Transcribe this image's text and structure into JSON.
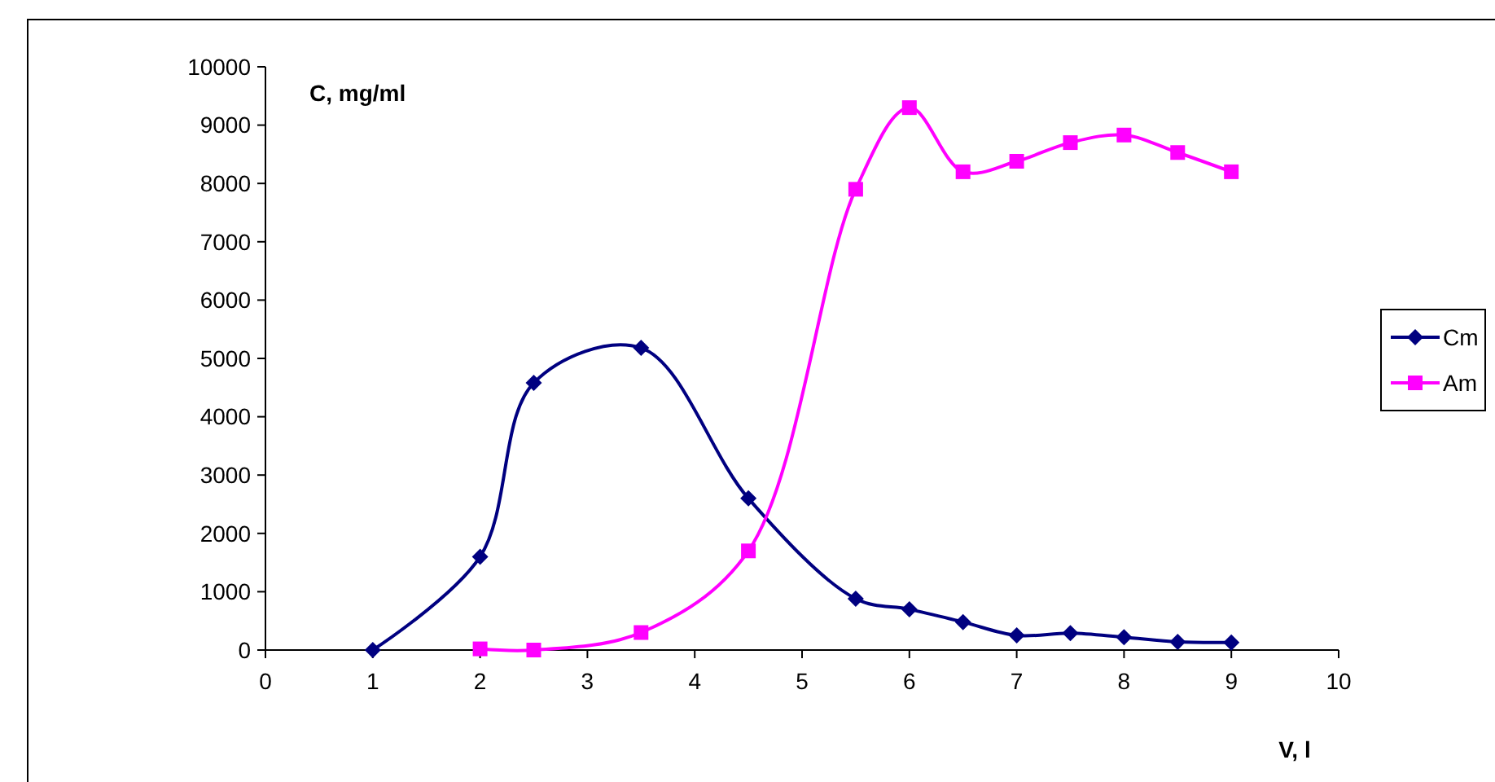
{
  "chart_data": {
    "type": "line",
    "xlabel": "V, l",
    "ylabel": "C, mg/ml",
    "xlim": [
      0,
      10
    ],
    "xticks": [
      0,
      1,
      2,
      3,
      4,
      5,
      6,
      7,
      8,
      9,
      10
    ],
    "ylim": [
      0,
      10000
    ],
    "yticks": [
      0,
      1000,
      2000,
      3000,
      4000,
      5000,
      6000,
      7000,
      8000,
      9000,
      10000
    ],
    "grid": false,
    "legend": "right",
    "line_style": "solid",
    "series": [
      {
        "name": "Cm",
        "color": "#000080",
        "marker": "diamond",
        "x": [
          1,
          2,
          2.5,
          3.5,
          4.5,
          5.5,
          6,
          6.5,
          7,
          7.5,
          8,
          8.5,
          9
        ],
        "values": [
          0,
          1600,
          4580,
          5180,
          2600,
          880,
          700,
          480,
          250,
          290,
          220,
          140,
          130
        ]
      },
      {
        "name": "Am",
        "color": "#ff00ff",
        "marker": "square",
        "x": [
          2,
          2.5,
          3.5,
          4.5,
          5.5,
          6,
          6.5,
          7,
          7.5,
          8,
          8.5,
          9
        ],
        "values": [
          20,
          0,
          300,
          1700,
          7900,
          9300,
          8200,
          8380,
          8700,
          8830,
          8530,
          8200
        ]
      }
    ]
  }
}
